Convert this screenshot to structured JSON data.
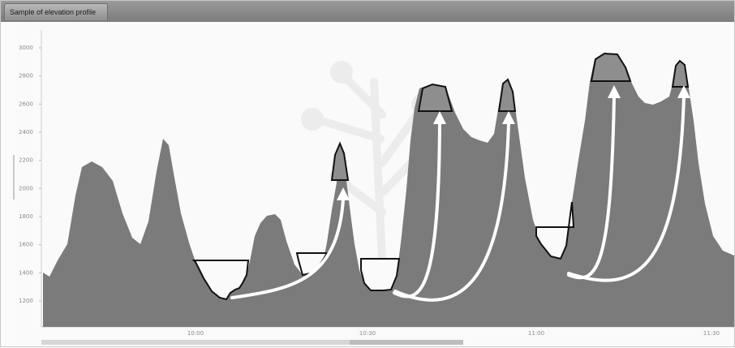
{
  "window": {
    "tab_label": "Sample of elevation profile"
  },
  "chart_data": {
    "type": "area",
    "y_ticks": [
      "3000",
      "2800",
      "2600",
      "2400",
      "2200",
      "2000",
      "1800",
      "1600",
      "1400",
      "1200"
    ],
    "x_ticks": [
      "10:00",
      "10:30",
      "11:00",
      "11:30"
    ],
    "colors": {
      "fill": "#7b7b7b",
      "highlight": "#8e8e8e",
      "outline": "#111111",
      "arrow": "#ffffff"
    }
  }
}
